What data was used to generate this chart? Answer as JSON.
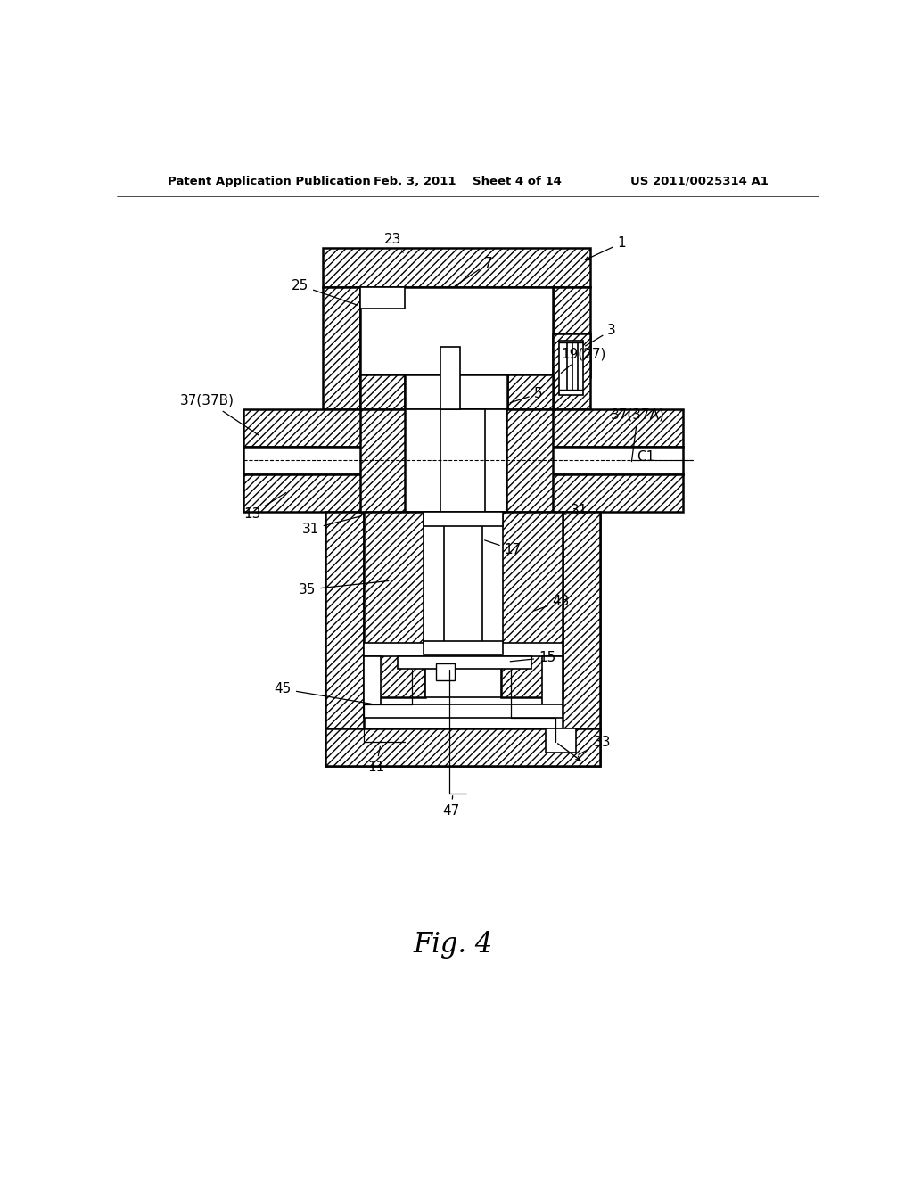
{
  "header_left": "Patent Application Publication",
  "header_center": "Feb. 3, 2011    Sheet 4 of 14",
  "header_right": "US 2011/0025314 A1",
  "fig_title": "Fig. 4",
  "bg": "#ffffff"
}
